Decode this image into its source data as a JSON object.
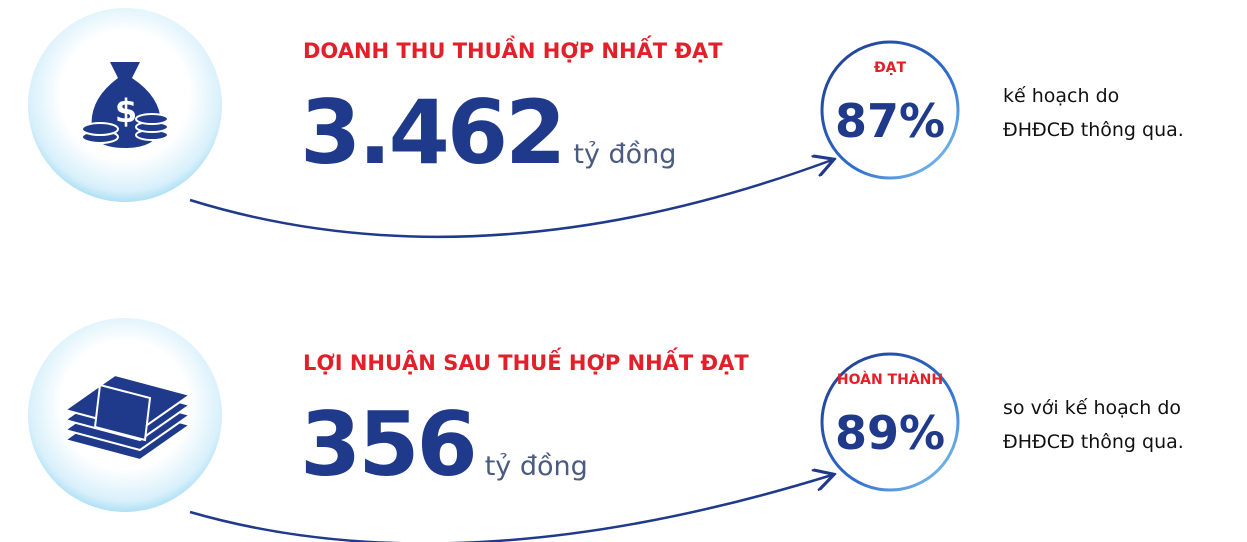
{
  "items": [
    {
      "title": "DOANH THU THUẦN HỢP NHẤT ĐẠT",
      "value": "3.462",
      "unit": "tỷ đồng",
      "badge_label": "ĐẠT",
      "badge_value": "87%",
      "note_lines": [
        "kế hoạch do",
        "ĐHĐCĐ thông qua."
      ]
    },
    {
      "title": "LỢI NHUẬN SAU THUẾ HỢP NHẤT ĐẠT",
      "value": "356",
      "unit": "tỷ đồng",
      "badge_label": "HOÀN THÀNH",
      "badge_value": "89%",
      "note_lines": [
        "so với kế hoạch do",
        "ĐHĐCĐ thông qua."
      ]
    }
  ]
}
